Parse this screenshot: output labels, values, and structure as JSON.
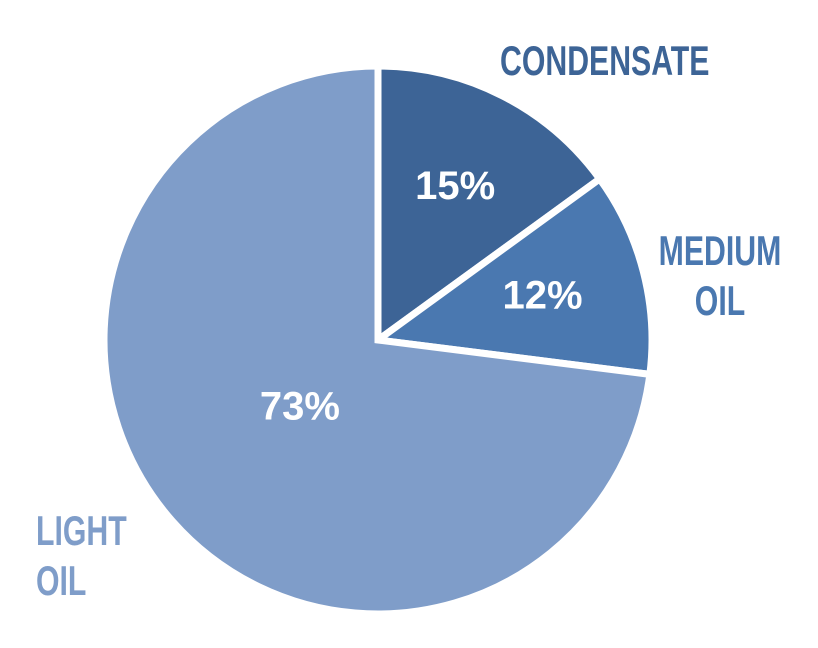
{
  "chart_data": {
    "type": "pie",
    "categories": [
      "CONDENSATE",
      "MEDIUM OIL",
      "LIGHT OIL"
    ],
    "values": [
      15,
      12,
      73
    ],
    "value_labels": [
      "15%",
      "12%",
      "73%"
    ],
    "colors": [
      "#3d6496",
      "#4a78b0",
      "#7f9dc9"
    ],
    "start_angle": 0,
    "direction": "clockwise"
  }
}
